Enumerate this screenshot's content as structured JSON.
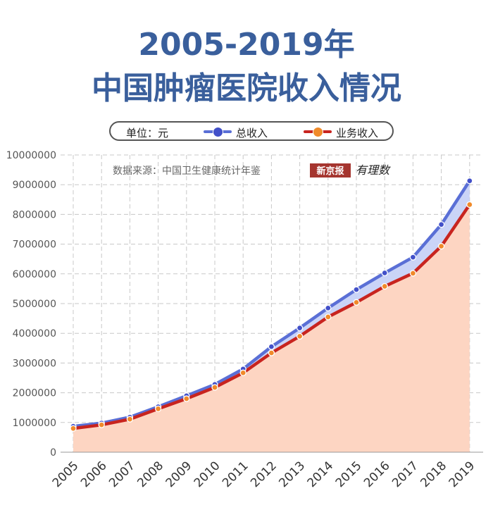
{
  "header": {
    "title_line1": "2005-2019年",
    "title_line2": "中国肿瘤医院收入情况"
  },
  "legend": {
    "unit": "单位：元",
    "series1": "总收入",
    "series2": "业务收入"
  },
  "source": {
    "text": "数据来源：中国卫生健康统计年鉴",
    "logo1": "新京报",
    "logo2": "有理数"
  },
  "colors": {
    "title": "#3a5f9c",
    "total_line": "#5a6fd6",
    "total_fill": "#c7d2f7",
    "business_line": "#c8241f",
    "business_fill": "#fdd5c2",
    "business_dot": "#f08a2a",
    "logo_bg": "#a5352f"
  },
  "chart_data": {
    "type": "area",
    "categories": [
      "2005",
      "2006",
      "2007",
      "2008",
      "2009",
      "2010",
      "2011",
      "2012",
      "2013",
      "2014",
      "2015",
      "2016",
      "2017",
      "2018",
      "2019"
    ],
    "series": [
      {
        "name": "总收入",
        "values": [
          870000,
          980000,
          1180000,
          1530000,
          1900000,
          2280000,
          2800000,
          3550000,
          4180000,
          4850000,
          5470000,
          6030000,
          6560000,
          7660000,
          9130000
        ]
      },
      {
        "name": "业务收入",
        "values": [
          800000,
          920000,
          1110000,
          1460000,
          1800000,
          2180000,
          2670000,
          3340000,
          3900000,
          4550000,
          5040000,
          5580000,
          6020000,
          6930000,
          8330000
        ]
      }
    ],
    "ylim": [
      0,
      10000000
    ],
    "yticks": [
      "0",
      "1000000",
      "2000000",
      "3000000",
      "4000000",
      "5000000",
      "6000000",
      "7000000",
      "8000000",
      "9000000",
      "10000000"
    ],
    "ylabel": "单位：元",
    "grid": true
  }
}
